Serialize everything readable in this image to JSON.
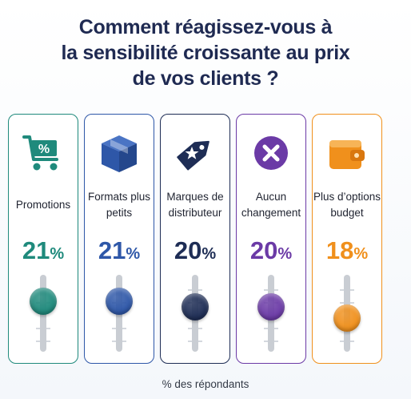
{
  "title_lines": [
    "Comment réagissez-vous à",
    "la sensibilité croissante au prix",
    "de vos clients ?"
  ],
  "footnote": "% des répondants",
  "unit": "%",
  "chart_data": {
    "type": "bar",
    "title": "Comment réagissez-vous à la sensibilité croissante au prix de vos clients ?",
    "categories": [
      "Promotions",
      "Formats plus petits",
      "Marques de distributeur",
      "Aucun changement",
      "Plus d'options budget"
    ],
    "values": [
      21,
      21,
      20,
      20,
      18
    ],
    "ylabel": "% des répondants"
  },
  "cards": [
    {
      "label": "Promotions",
      "value": "21",
      "color": "#1f8a7c",
      "icon": "shopping-cart-percent-icon"
    },
    {
      "label": "Formats plus petits",
      "value": "21",
      "color": "#2e57a8",
      "icon": "package-box-icon"
    },
    {
      "label": "Marques de distributeur",
      "value": "20",
      "color": "#1e2d55",
      "icon": "price-tag-star-icon"
    },
    {
      "label": "Aucun changement",
      "value": "20",
      "color": "#6b3aa6",
      "icon": "cross-circle-icon"
    },
    {
      "label": "Plus d’options budget",
      "value": "18",
      "color": "#f0901c",
      "icon": "wallet-icon"
    }
  ]
}
